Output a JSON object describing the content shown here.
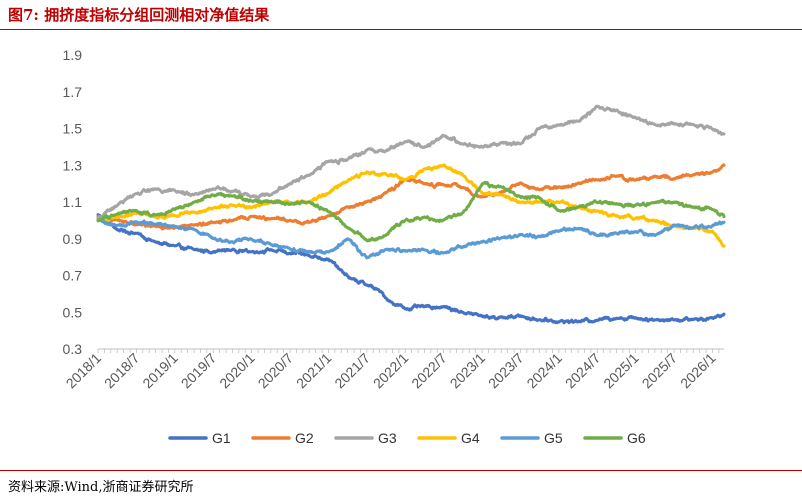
{
  "figure": {
    "title": "图7:   拥挤度指标分组回测相对净值结果",
    "source": "资料来源:Wind,浙商证券研究所"
  },
  "chart_data": {
    "type": "line",
    "title": "拥挤度指标分组回测相对净值结果",
    "xlabel": "",
    "ylabel": "",
    "ylim": [
      0.3,
      1.9
    ],
    "yticks": [
      "0.3",
      "0.5",
      "0.7",
      "0.9",
      "1.1",
      "1.3",
      "1.5",
      "1.7",
      "1.9"
    ],
    "grid": false,
    "legend_position": "bottom",
    "x_start": 2018.0,
    "x_end": 2026.15,
    "xticks": [
      {
        "t": 2018.0,
        "label": "2018/1"
      },
      {
        "t": 2018.5,
        "label": "2018/7"
      },
      {
        "t": 2019.0,
        "label": "2019/1"
      },
      {
        "t": 2019.5,
        "label": "2019/7"
      },
      {
        "t": 2020.0,
        "label": "2020/1"
      },
      {
        "t": 2020.5,
        "label": "2020/7"
      },
      {
        "t": 2021.0,
        "label": "2021/1"
      },
      {
        "t": 2021.5,
        "label": "2021/7"
      },
      {
        "t": 2022.0,
        "label": "2022/1"
      },
      {
        "t": 2022.5,
        "label": "2022/7"
      },
      {
        "t": 2023.0,
        "label": "2023/1"
      },
      {
        "t": 2023.5,
        "label": "2023/7"
      },
      {
        "t": 2024.0,
        "label": "2024/1"
      },
      {
        "t": 2024.5,
        "label": "2024/7"
      },
      {
        "t": 2025.0,
        "label": "2025/1"
      },
      {
        "t": 2025.5,
        "label": "2025/7"
      },
      {
        "t": 2026.0,
        "label": "2026/1"
      }
    ],
    "series": [
      {
        "name": "G1",
        "color": "#4472c4",
        "points": [
          [
            2018.0,
            1.03
          ],
          [
            2018.1,
            1.0
          ],
          [
            2018.25,
            0.95
          ],
          [
            2018.5,
            0.93
          ],
          [
            2018.75,
            0.88
          ],
          [
            2019.0,
            0.86
          ],
          [
            2019.25,
            0.84
          ],
          [
            2019.5,
            0.83
          ],
          [
            2019.75,
            0.84
          ],
          [
            2020.0,
            0.83
          ],
          [
            2020.25,
            0.84
          ],
          [
            2020.5,
            0.82
          ],
          [
            2020.75,
            0.81
          ],
          [
            2021.0,
            0.79
          ],
          [
            2021.15,
            0.73
          ],
          [
            2021.3,
            0.68
          ],
          [
            2021.5,
            0.65
          ],
          [
            2021.65,
            0.62
          ],
          [
            2021.8,
            0.56
          ],
          [
            2022.0,
            0.52
          ],
          [
            2022.25,
            0.53
          ],
          [
            2022.5,
            0.53
          ],
          [
            2022.75,
            0.5
          ],
          [
            2023.0,
            0.48
          ],
          [
            2023.25,
            0.47
          ],
          [
            2023.5,
            0.48
          ],
          [
            2023.75,
            0.46
          ],
          [
            2024.0,
            0.45
          ],
          [
            2024.25,
            0.45
          ],
          [
            2024.5,
            0.46
          ],
          [
            2024.75,
            0.47
          ],
          [
            2025.0,
            0.47
          ],
          [
            2025.25,
            0.46
          ],
          [
            2025.5,
            0.46
          ],
          [
            2025.75,
            0.46
          ],
          [
            2026.0,
            0.47
          ],
          [
            2026.15,
            0.49
          ]
        ]
      },
      {
        "name": "G2",
        "color": "#ed7d31",
        "points": [
          [
            2018.0,
            1.02
          ],
          [
            2018.25,
            1.0
          ],
          [
            2018.5,
            0.98
          ],
          [
            2018.75,
            0.97
          ],
          [
            2019.0,
            0.96
          ],
          [
            2019.25,
            0.97
          ],
          [
            2019.5,
            0.99
          ],
          [
            2019.75,
            1.0
          ],
          [
            2020.0,
            1.02
          ],
          [
            2020.25,
            1.01
          ],
          [
            2020.5,
            1.0
          ],
          [
            2020.75,
            0.99
          ],
          [
            2021.0,
            1.02
          ],
          [
            2021.25,
            1.07
          ],
          [
            2021.5,
            1.1
          ],
          [
            2021.75,
            1.15
          ],
          [
            2022.0,
            1.22
          ],
          [
            2022.25,
            1.2
          ],
          [
            2022.5,
            1.19
          ],
          [
            2022.75,
            1.18
          ],
          [
            2023.0,
            1.13
          ],
          [
            2023.25,
            1.15
          ],
          [
            2023.5,
            1.2
          ],
          [
            2023.75,
            1.17
          ],
          [
            2024.0,
            1.18
          ],
          [
            2024.25,
            1.2
          ],
          [
            2024.5,
            1.22
          ],
          [
            2024.75,
            1.24
          ],
          [
            2025.0,
            1.22
          ],
          [
            2025.25,
            1.24
          ],
          [
            2025.5,
            1.23
          ],
          [
            2025.75,
            1.25
          ],
          [
            2026.0,
            1.26
          ],
          [
            2026.15,
            1.3
          ]
        ]
      },
      {
        "name": "G3",
        "color": "#a5a5a5",
        "points": [
          [
            2018.0,
            1.01
          ],
          [
            2018.25,
            1.08
          ],
          [
            2018.5,
            1.15
          ],
          [
            2018.75,
            1.17
          ],
          [
            2019.0,
            1.16
          ],
          [
            2019.25,
            1.14
          ],
          [
            2019.5,
            1.17
          ],
          [
            2019.75,
            1.16
          ],
          [
            2020.0,
            1.13
          ],
          [
            2020.25,
            1.14
          ],
          [
            2020.5,
            1.2
          ],
          [
            2020.75,
            1.25
          ],
          [
            2021.0,
            1.32
          ],
          [
            2021.25,
            1.33
          ],
          [
            2021.5,
            1.38
          ],
          [
            2021.75,
            1.38
          ],
          [
            2022.0,
            1.43
          ],
          [
            2022.25,
            1.4
          ],
          [
            2022.5,
            1.46
          ],
          [
            2022.75,
            1.42
          ],
          [
            2023.0,
            1.4
          ],
          [
            2023.25,
            1.42
          ],
          [
            2023.5,
            1.42
          ],
          [
            2023.75,
            1.5
          ],
          [
            2024.0,
            1.52
          ],
          [
            2024.25,
            1.54
          ],
          [
            2024.5,
            1.62
          ],
          [
            2024.75,
            1.6
          ],
          [
            2025.0,
            1.56
          ],
          [
            2025.25,
            1.52
          ],
          [
            2025.5,
            1.53
          ],
          [
            2025.75,
            1.52
          ],
          [
            2026.0,
            1.5
          ],
          [
            2026.15,
            1.47
          ]
        ]
      },
      {
        "name": "G4",
        "color": "#ffc000",
        "points": [
          [
            2018.0,
            1.0
          ],
          [
            2018.25,
            1.02
          ],
          [
            2018.5,
            1.04
          ],
          [
            2018.75,
            1.02
          ],
          [
            2019.0,
            1.03
          ],
          [
            2019.25,
            1.05
          ],
          [
            2019.5,
            1.07
          ],
          [
            2019.75,
            1.08
          ],
          [
            2020.0,
            1.07
          ],
          [
            2020.25,
            1.1
          ],
          [
            2020.5,
            1.1
          ],
          [
            2020.75,
            1.1
          ],
          [
            2021.0,
            1.15
          ],
          [
            2021.25,
            1.22
          ],
          [
            2021.5,
            1.26
          ],
          [
            2021.75,
            1.25
          ],
          [
            2022.0,
            1.22
          ],
          [
            2022.25,
            1.28
          ],
          [
            2022.5,
            1.3
          ],
          [
            2022.75,
            1.25
          ],
          [
            2023.0,
            1.15
          ],
          [
            2023.25,
            1.14
          ],
          [
            2023.5,
            1.1
          ],
          [
            2023.75,
            1.1
          ],
          [
            2024.0,
            1.1
          ],
          [
            2024.25,
            1.07
          ],
          [
            2024.5,
            1.05
          ],
          [
            2024.75,
            1.02
          ],
          [
            2025.0,
            1.01
          ],
          [
            2025.25,
            1.0
          ],
          [
            2025.5,
            0.97
          ],
          [
            2025.75,
            0.96
          ],
          [
            2026.0,
            0.94
          ],
          [
            2026.15,
            0.86
          ]
        ]
      },
      {
        "name": "G5",
        "color": "#5b9bd5",
        "points": [
          [
            2018.0,
            1.0
          ],
          [
            2018.25,
            0.97
          ],
          [
            2018.5,
            0.99
          ],
          [
            2018.75,
            0.98
          ],
          [
            2019.0,
            0.97
          ],
          [
            2019.25,
            0.95
          ],
          [
            2019.5,
            0.9
          ],
          [
            2019.75,
            0.88
          ],
          [
            2020.0,
            0.9
          ],
          [
            2020.25,
            0.87
          ],
          [
            2020.5,
            0.84
          ],
          [
            2020.75,
            0.83
          ],
          [
            2021.0,
            0.83
          ],
          [
            2021.25,
            0.9
          ],
          [
            2021.5,
            0.8
          ],
          [
            2021.75,
            0.84
          ],
          [
            2022.0,
            0.83
          ],
          [
            2022.25,
            0.84
          ],
          [
            2022.5,
            0.82
          ],
          [
            2022.75,
            0.86
          ],
          [
            2023.0,
            0.88
          ],
          [
            2023.25,
            0.9
          ],
          [
            2023.5,
            0.92
          ],
          [
            2023.75,
            0.91
          ],
          [
            2024.0,
            0.94
          ],
          [
            2024.25,
            0.96
          ],
          [
            2024.5,
            0.92
          ],
          [
            2024.75,
            0.93
          ],
          [
            2025.0,
            0.94
          ],
          [
            2025.25,
            0.92
          ],
          [
            2025.5,
            0.97
          ],
          [
            2025.75,
            0.96
          ],
          [
            2026.0,
            0.97
          ],
          [
            2026.15,
            0.99
          ]
        ]
      },
      {
        "name": "G6",
        "color": "#70ad47",
        "points": [
          [
            2018.0,
            1.0
          ],
          [
            2018.25,
            1.03
          ],
          [
            2018.5,
            1.05
          ],
          [
            2018.75,
            1.03
          ],
          [
            2019.0,
            1.06
          ],
          [
            2019.25,
            1.1
          ],
          [
            2019.5,
            1.14
          ],
          [
            2019.75,
            1.13
          ],
          [
            2020.0,
            1.11
          ],
          [
            2020.25,
            1.1
          ],
          [
            2020.5,
            1.09
          ],
          [
            2020.75,
            1.1
          ],
          [
            2021.0,
            1.05
          ],
          [
            2021.25,
            0.96
          ],
          [
            2021.5,
            0.89
          ],
          [
            2021.75,
            0.92
          ],
          [
            2022.0,
            1.0
          ],
          [
            2022.25,
            1.02
          ],
          [
            2022.5,
            1.0
          ],
          [
            2022.75,
            1.04
          ],
          [
            2023.0,
            1.2
          ],
          [
            2023.25,
            1.18
          ],
          [
            2023.5,
            1.13
          ],
          [
            2023.75,
            1.12
          ],
          [
            2024.0,
            1.05
          ],
          [
            2024.25,
            1.07
          ],
          [
            2024.5,
            1.1
          ],
          [
            2024.75,
            1.09
          ],
          [
            2025.0,
            1.08
          ],
          [
            2025.25,
            1.1
          ],
          [
            2025.5,
            1.1
          ],
          [
            2025.75,
            1.07
          ],
          [
            2026.0,
            1.06
          ],
          [
            2026.15,
            1.02
          ]
        ]
      }
    ]
  }
}
